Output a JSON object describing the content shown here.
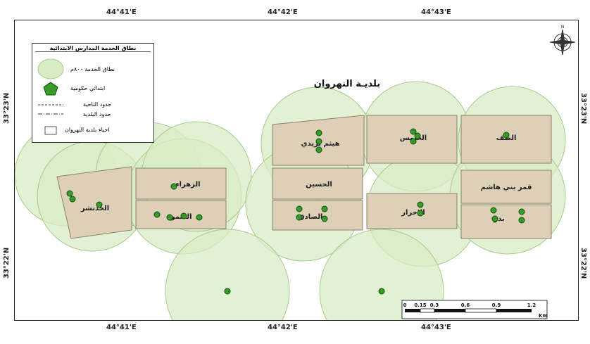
{
  "map": {
    "title": "بلديـة النهروان",
    "coords": {
      "top": [
        "44°41'E",
        "44°42'E",
        "44°43'E"
      ],
      "bottom": [
        "44°41'E",
        "44°42'E",
        "44°43'E"
      ],
      "left": [
        "33°23'N",
        "33°22'N"
      ],
      "right": [
        "33°23'N",
        "33°22'N"
      ]
    },
    "neighborhoods": [
      {
        "name": "هيثم بزيدي"
      },
      {
        "name": "الحامس"
      },
      {
        "name": "الطف"
      },
      {
        "name": "الحسين"
      },
      {
        "name": "قمر بني هاشم"
      },
      {
        "name": "الزهراء"
      },
      {
        "name": "الصمود"
      },
      {
        "name": "الصادق"
      },
      {
        "name": "الاحرار"
      },
      {
        "name": "بدر"
      },
      {
        "name": "الحدنشر"
      }
    ],
    "colors": {
      "buffer_fill": "#d8ecc6",
      "buffer_stroke": "#a9c98f",
      "neighborhood_fill": "#ddcfb8",
      "school_fill": "#3a9a2a",
      "school_stroke": "#0c4f0a"
    }
  },
  "legend": {
    "title": "نطاق الخدمة المدارس الابتدائية",
    "items": [
      {
        "label": "نطاق الخدمة ٨٠٠م",
        "icon": "buffer-circle-icon"
      },
      {
        "label": "ابتدائي حكومية",
        "icon": "school-pentagon-icon"
      },
      {
        "label": "حدود الناحية",
        "icon": "district-boundary-icon"
      },
      {
        "label": "حدود البلدية",
        "icon": "municipality-boundary-icon"
      },
      {
        "label": "احياء بلدية النهروان",
        "icon": "neighborhood-polygon-icon"
      }
    ]
  },
  "scale_bar": {
    "ticks": [
      "0",
      "0.15",
      "0.3",
      "0.6",
      "0.9",
      "1.2"
    ],
    "unit": "Km"
  }
}
